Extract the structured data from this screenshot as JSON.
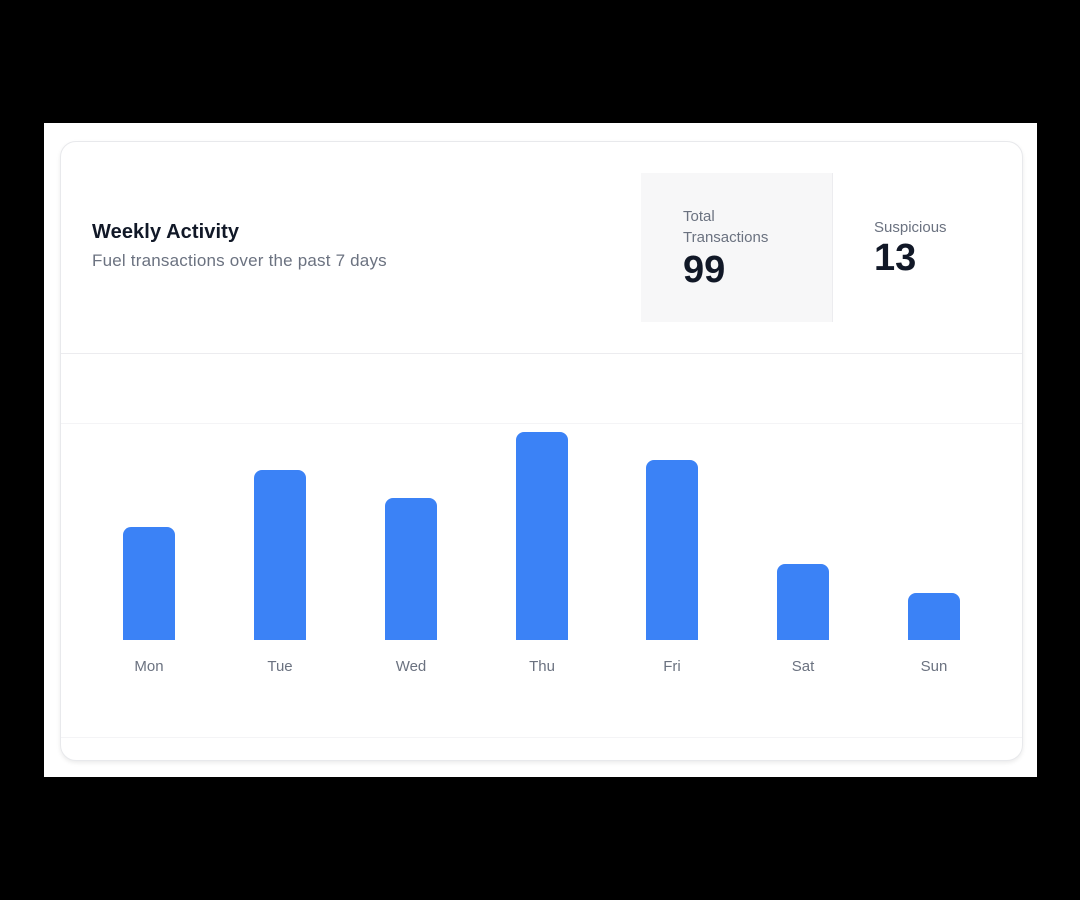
{
  "card": {
    "title": "Weekly Activity",
    "subtitle": "Fuel transactions over the past 7 days"
  },
  "stats": {
    "total": {
      "label": "Total Transactions",
      "value": "99"
    },
    "suspicious": {
      "label": "Suspicious",
      "value": "13"
    }
  },
  "colors": {
    "bar": "#3b82f6",
    "title": "#111827",
    "muted": "#6b7280",
    "stat_bg": "#f7f7f8"
  },
  "chart_data": {
    "type": "bar",
    "title": "Weekly Activity",
    "subtitle": "Fuel transactions over the past 7 days",
    "categories": [
      "Mon",
      "Tue",
      "Wed",
      "Thu",
      "Fri",
      "Sat",
      "Sun"
    ],
    "values": [
      12,
      18,
      15,
      22,
      19,
      8,
      5
    ],
    "xlabel": "",
    "ylabel": "",
    "ylim": [
      0,
      22
    ],
    "grid": false,
    "legend": null
  }
}
